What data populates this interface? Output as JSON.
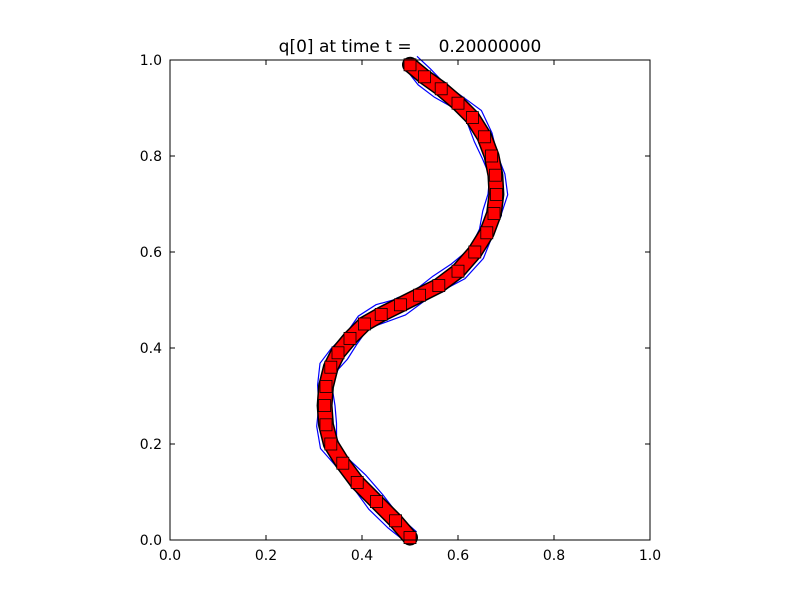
{
  "chart_data": {
    "type": "line",
    "title": "q[0] at time t =     0.20000000",
    "xlabel": "",
    "ylabel": "",
    "xlim": [
      0.0,
      1.0
    ],
    "ylim": [
      0.0,
      1.0
    ],
    "grid": false,
    "legend": "none",
    "x_ticks": [
      "0.0",
      "0.2",
      "0.4",
      "0.6",
      "0.8",
      "1.0"
    ],
    "y_ticks": [
      "0.0",
      "0.2",
      "0.4",
      "0.6",
      "0.8",
      "1.0"
    ],
    "colors": {
      "contour": "#0000ff",
      "interface": "#ff0000",
      "marker_edge": "#000000",
      "reference": "#000000"
    },
    "reference_curve": {
      "name": "",
      "x": [
        0.5,
        0.47,
        0.43,
        0.39,
        0.36,
        0.335,
        0.325,
        0.322,
        0.325,
        0.335,
        0.35,
        0.375,
        0.405,
        0.44,
        0.48,
        0.52,
        0.56,
        0.6,
        0.635,
        0.66,
        0.675,
        0.68,
        0.678,
        0.67,
        0.655,
        0.63,
        0.6,
        0.565,
        0.53,
        0.5
      ],
      "y": [
        0.005,
        0.04,
        0.08,
        0.12,
        0.16,
        0.2,
        0.24,
        0.28,
        0.32,
        0.36,
        0.39,
        0.42,
        0.45,
        0.47,
        0.49,
        0.51,
        0.53,
        0.56,
        0.6,
        0.64,
        0.68,
        0.72,
        0.76,
        0.8,
        0.84,
        0.88,
        0.91,
        0.94,
        0.965,
        0.99
      ]
    },
    "contour_offsets": [
      -0.018,
      -0.01,
      -0.004,
      0.004,
      0.01,
      0.018
    ]
  }
}
